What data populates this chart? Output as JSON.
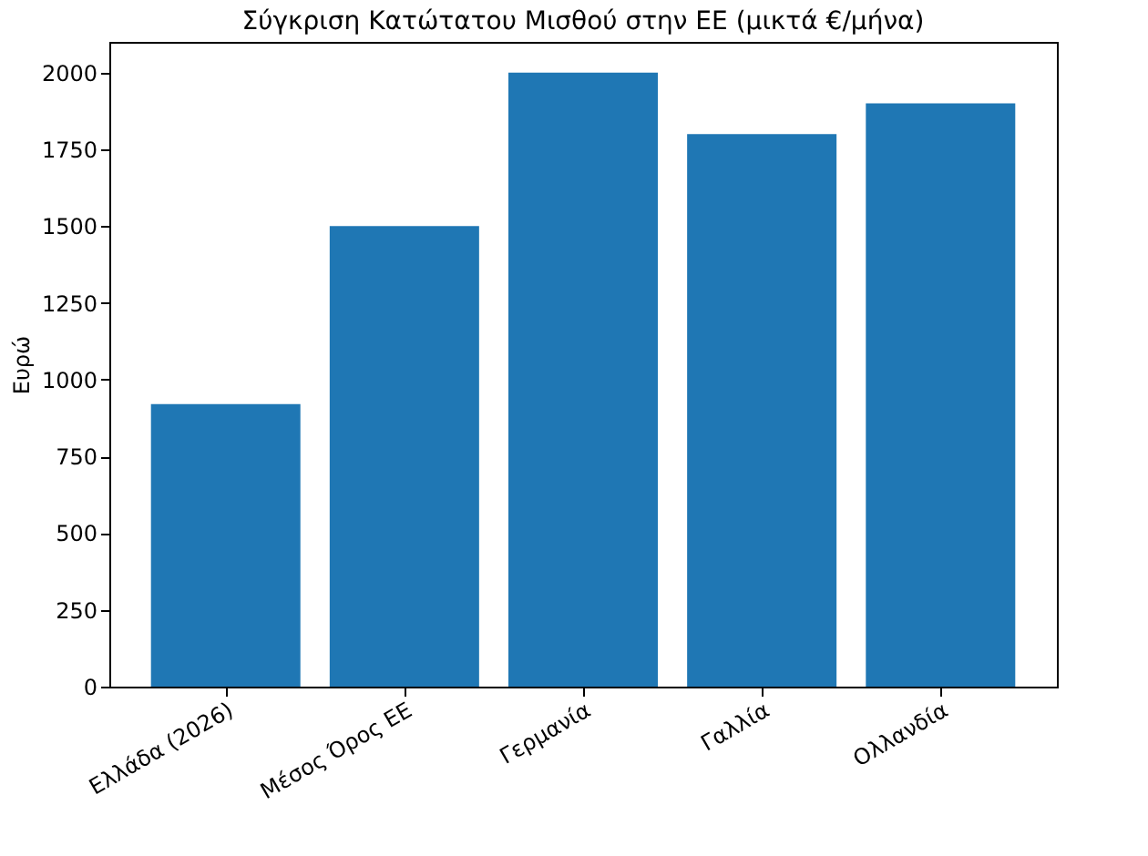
{
  "chart_data": {
    "type": "bar",
    "title": "Σύγκριση Κατώτατου Μισθού στην ΕΕ (μικτά €/μήνα)",
    "ylabel": "Ευρώ",
    "categories": [
      "Ελλάδα (2026)",
      "Μέσος Όρος ΕΕ",
      "Γερμανία",
      "Γαλλία",
      "Ολλανδία"
    ],
    "values": [
      920,
      1500,
      2000,
      1800,
      1900
    ],
    "color": "#1f77b4",
    "ylim": [
      0,
      2100
    ],
    "yticks": [
      0,
      250,
      500,
      750,
      1000,
      1250,
      1500,
      1750,
      2000
    ],
    "grid": false
  }
}
